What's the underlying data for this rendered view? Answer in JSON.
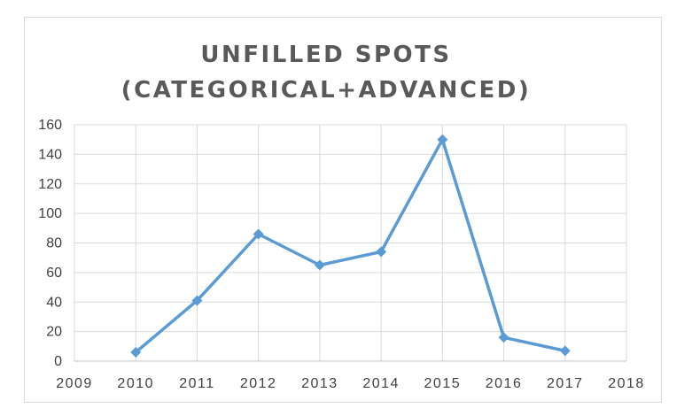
{
  "chart_data": {
    "type": "line",
    "title_lines": [
      "UNFILLED SPOTS",
      "(CATEGORICAL+ADVANCED)"
    ],
    "xlabel": "",
    "ylabel": "",
    "x_ticks": [
      2009,
      2010,
      2011,
      2012,
      2013,
      2014,
      2015,
      2016,
      2017,
      2018
    ],
    "y_ticks": [
      0,
      20,
      40,
      60,
      80,
      100,
      120,
      140,
      160
    ],
    "xlim": [
      2009,
      2018
    ],
    "ylim": [
      0,
      160
    ],
    "grid": true,
    "legend": "none",
    "series": [
      {
        "color": "#5b9bd5",
        "marker": "diamond",
        "points": [
          {
            "x": 2010,
            "y": 6
          },
          {
            "x": 2011,
            "y": 41
          },
          {
            "x": 2012,
            "y": 86
          },
          {
            "x": 2013,
            "y": 65
          },
          {
            "x": 2014,
            "y": 74
          },
          {
            "x": 2015,
            "y": 150
          },
          {
            "x": 2016,
            "y": 16
          },
          {
            "x": 2017,
            "y": 7
          }
        ]
      }
    ],
    "colors": {
      "gridline": "#d9d9d9",
      "axis": "#bfbfbf",
      "title": "#595959",
      "tick_label": "#404040"
    }
  }
}
